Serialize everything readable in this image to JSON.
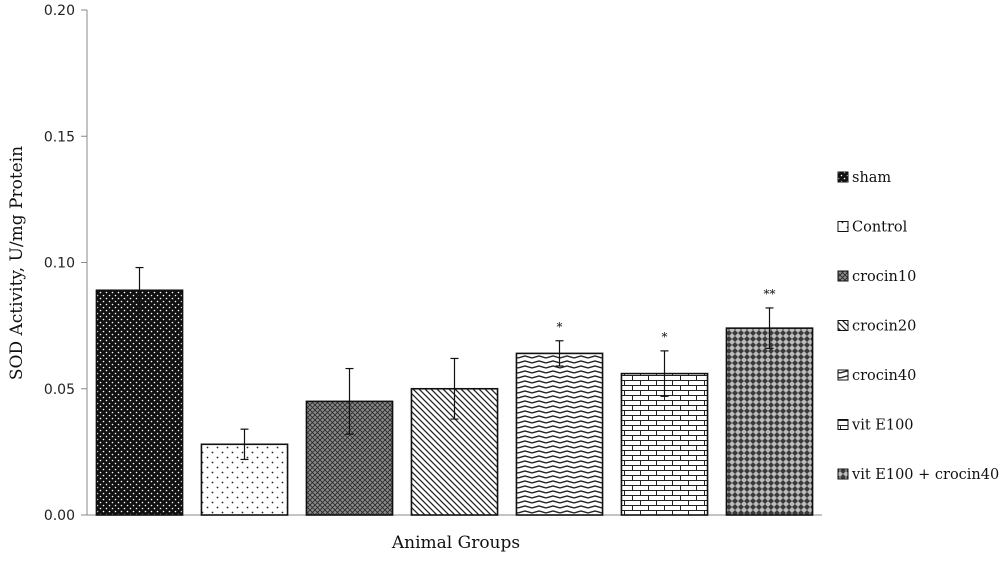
{
  "chart_data": {
    "type": "bar",
    "title": "",
    "xlabel": "Animal Groups",
    "ylabel": "SOD Activity, U/mg Protein",
    "ylim": [
      0,
      0.2
    ],
    "yticks": [
      {
        "value": 0.0,
        "label": "0.00"
      },
      {
        "value": 0.05,
        "label": "0.05"
      },
      {
        "value": 0.1,
        "label": "0.10"
      },
      {
        "value": 0.15,
        "label": "0.15"
      },
      {
        "value": 0.2,
        "label": "0.20"
      }
    ],
    "grid": false,
    "legend_position": "right",
    "series": [
      {
        "name": "sham",
        "value": 0.089,
        "error": 0.009,
        "significance": "",
        "pattern": "dense-dots"
      },
      {
        "name": "Control",
        "value": 0.028,
        "error": 0.006,
        "significance": "",
        "pattern": "sparse-dots"
      },
      {
        "name": "crocin10",
        "value": 0.045,
        "error": 0.013,
        "significance": "",
        "pattern": "crosshatch"
      },
      {
        "name": "crocin20",
        "value": 0.05,
        "error": 0.012,
        "significance": "",
        "pattern": "diagonal"
      },
      {
        "name": "crocin40",
        "value": 0.064,
        "error": 0.005,
        "significance": "*",
        "pattern": "wavy"
      },
      {
        "name": "vit E100",
        "value": 0.056,
        "error": 0.009,
        "significance": "*",
        "pattern": "brick"
      },
      {
        "name": "vit E100 + crocin40",
        "value": 0.074,
        "error": 0.008,
        "significance": "**",
        "pattern": "diamond"
      }
    ]
  }
}
